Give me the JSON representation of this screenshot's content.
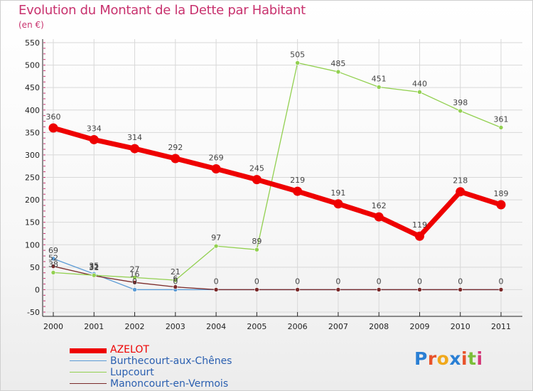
{
  "header": {
    "title": "Evolution du Montant de la Dette par Habitant",
    "unit": "(en €)"
  },
  "colors": {
    "title": "#c8326e",
    "grid": "#d8d8d8",
    "axis": "#222222",
    "tick_dash": "#c8326e"
  },
  "chart_data": {
    "type": "line",
    "title": "Evolution du Montant de la Dette par Habitant",
    "ylabel": "(en €)",
    "xlabel": "",
    "categories": [
      "2000",
      "2001",
      "2002",
      "2003",
      "2004",
      "2005",
      "2006",
      "2007",
      "2008",
      "2009",
      "2010",
      "2011"
    ],
    "ylim": [
      -50,
      550
    ],
    "yticks": [
      -50,
      0,
      50,
      100,
      150,
      200,
      250,
      300,
      350,
      400,
      450,
      500,
      550
    ],
    "grid": true,
    "legend_position": "bottom-left",
    "series": [
      {
        "name": "AZELOT",
        "color": "#ee0000",
        "emphasis": "thick",
        "values": [
          360,
          334,
          314,
          292,
          269,
          245,
          219,
          191,
          162,
          119,
          218,
          189
        ],
        "labels": [
          "360",
          "334",
          "314",
          "292",
          "269",
          "245",
          "219",
          "191",
          "162",
          "119",
          "218",
          "189"
        ]
      },
      {
        "name": "Burthecourt-aux-Chênes",
        "color": "#5b9bd5",
        "emphasis": "thin",
        "values": [
          69,
          35,
          0,
          0,
          0,
          0,
          0,
          0,
          0,
          0,
          0,
          0
        ],
        "labels": [
          "69",
          "35",
          "0",
          "0",
          "",
          "",
          "",
          "",
          "",
          "",
          "",
          ""
        ]
      },
      {
        "name": "Lupcourt",
        "color": "#92d050",
        "emphasis": "thin",
        "values": [
          38,
          32,
          27,
          21,
          97,
          89,
          505,
          485,
          451,
          440,
          398,
          361
        ],
        "labels": [
          "38",
          "32",
          "27",
          "21",
          "97",
          "89",
          "505",
          "485",
          "451",
          "440",
          "398",
          "361"
        ]
      },
      {
        "name": "Manoncourt-en-Vermois",
        "color": "#7b2a2a",
        "emphasis": "thin",
        "values": [
          52,
          31,
          16,
          6,
          0,
          0,
          0,
          0,
          0,
          0,
          0,
          0
        ],
        "labels": [
          "52",
          "31",
          "16",
          "6",
          "0",
          "0",
          "0",
          "0",
          "0",
          "0",
          "0",
          "0"
        ]
      }
    ]
  },
  "legend": {
    "items": [
      {
        "label": "AZELOT",
        "color": "#ee0000"
      },
      {
        "label": "Burthecourt-aux-Chênes",
        "color": "#5b9bd5"
      },
      {
        "label": "Lupcourt",
        "color": "#92d050"
      },
      {
        "label": "Manoncourt-en-Vermois",
        "color": "#7b2a2a"
      }
    ]
  },
  "logo": {
    "text": "Proxiti",
    "letter_colors": [
      "#2a7fd4",
      "#e8532b",
      "#f0a81c",
      "#2a7fd4",
      "#e8532b",
      "#7cbf3a",
      "#d43a7a"
    ]
  }
}
